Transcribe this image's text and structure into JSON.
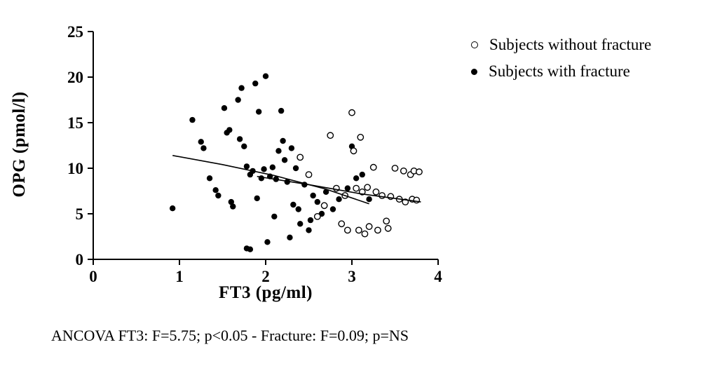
{
  "caption": "ANCOVA FT3: F=5.75; p&lt;0.05 - Fracture: F=0.09; p=NS",
  "caption_text": "ANCOVA FT3: F=5.75; p<0.05 - Fracture: F=0.09; p=NS",
  "chart_data": {
    "type": "scatter",
    "title": "",
    "xlabel": "FT3 (pg/ml)",
    "ylabel": "OPG (pmol/l)",
    "xlim": [
      0,
      4
    ],
    "ylim": [
      0,
      25
    ],
    "x_ticks": [
      0,
      1,
      2,
      3,
      4
    ],
    "y_ticks": [
      0,
      5,
      10,
      15,
      20,
      25
    ],
    "grid": false,
    "legend_position": "top-right",
    "marker_color": "#000000",
    "series": [
      {
        "name": "Subjects without fracture",
        "marker": "open-circle",
        "points": [
          [
            2.4,
            11.2
          ],
          [
            2.5,
            9.3
          ],
          [
            2.6,
            4.7
          ],
          [
            2.68,
            5.9
          ],
          [
            2.75,
            13.6
          ],
          [
            2.82,
            7.8
          ],
          [
            2.88,
            3.9
          ],
          [
            2.92,
            7.0
          ],
          [
            2.95,
            3.2
          ],
          [
            3.0,
            16.1
          ],
          [
            3.02,
            11.9
          ],
          [
            3.05,
            7.8
          ],
          [
            3.08,
            3.2
          ],
          [
            3.1,
            13.4
          ],
          [
            3.12,
            7.4
          ],
          [
            3.15,
            2.8
          ],
          [
            3.18,
            7.9
          ],
          [
            3.2,
            3.6
          ],
          [
            3.25,
            10.1
          ],
          [
            3.28,
            7.4
          ],
          [
            3.3,
            3.2
          ],
          [
            3.35,
            7.0
          ],
          [
            3.4,
            4.2
          ],
          [
            3.42,
            3.4
          ],
          [
            3.45,
            6.9
          ],
          [
            3.5,
            10.0
          ],
          [
            3.55,
            6.6
          ],
          [
            3.6,
            9.7
          ],
          [
            3.62,
            6.3
          ],
          [
            3.68,
            9.3
          ],
          [
            3.7,
            6.6
          ],
          [
            3.72,
            9.7
          ],
          [
            3.75,
            6.5
          ],
          [
            3.78,
            9.6
          ]
        ]
      },
      {
        "name": "Subjects with fracture",
        "marker": "filled-circle",
        "points": [
          [
            0.92,
            5.6
          ],
          [
            1.15,
            15.3
          ],
          [
            1.25,
            12.9
          ],
          [
            1.28,
            12.2
          ],
          [
            1.35,
            8.9
          ],
          [
            1.42,
            7.6
          ],
          [
            1.45,
            7.0
          ],
          [
            1.52,
            16.6
          ],
          [
            1.55,
            13.9
          ],
          [
            1.58,
            14.2
          ],
          [
            1.6,
            6.3
          ],
          [
            1.62,
            5.8
          ],
          [
            1.68,
            17.5
          ],
          [
            1.7,
            13.2
          ],
          [
            1.72,
            18.8
          ],
          [
            1.75,
            12.4
          ],
          [
            1.78,
            10.2
          ],
          [
            1.78,
            1.2
          ],
          [
            1.82,
            1.1
          ],
          [
            1.82,
            9.3
          ],
          [
            1.85,
            9.7
          ],
          [
            1.88,
            19.3
          ],
          [
            1.9,
            6.7
          ],
          [
            1.92,
            16.2
          ],
          [
            1.95,
            8.9
          ],
          [
            1.98,
            9.9
          ],
          [
            2.0,
            20.1
          ],
          [
            2.02,
            1.9
          ],
          [
            2.05,
            9.1
          ],
          [
            2.08,
            10.1
          ],
          [
            2.1,
            4.7
          ],
          [
            2.12,
            8.8
          ],
          [
            2.15,
            11.9
          ],
          [
            2.18,
            16.3
          ],
          [
            2.2,
            13.0
          ],
          [
            2.22,
            10.9
          ],
          [
            2.25,
            8.5
          ],
          [
            2.28,
            2.4
          ],
          [
            2.3,
            12.2
          ],
          [
            2.32,
            6.0
          ],
          [
            2.35,
            10.0
          ],
          [
            2.38,
            5.5
          ],
          [
            2.4,
            3.9
          ],
          [
            2.45,
            8.2
          ],
          [
            2.5,
            3.2
          ],
          [
            2.52,
            4.3
          ],
          [
            2.55,
            7.0
          ],
          [
            2.6,
            6.3
          ],
          [
            2.65,
            5.0
          ],
          [
            2.7,
            7.4
          ],
          [
            2.78,
            5.5
          ],
          [
            2.85,
            6.6
          ],
          [
            2.95,
            7.8
          ],
          [
            3.0,
            12.4
          ],
          [
            3.05,
            8.9
          ],
          [
            3.12,
            9.3
          ],
          [
            3.2,
            6.6
          ]
        ]
      }
    ],
    "trend_lines": [
      {
        "name": "trend-with-fracture",
        "points": [
          [
            0.92,
            11.4
          ],
          [
            1.5,
            10.4
          ],
          [
            2.1,
            9.2
          ],
          [
            2.7,
            7.7
          ],
          [
            3.2,
            6.1
          ]
        ]
      },
      {
        "name": "trend-without-fracture",
        "points": [
          [
            1.9,
            9.1
          ],
          [
            2.5,
            8.2
          ],
          [
            3.1,
            7.2
          ],
          [
            3.8,
            6.3
          ]
        ]
      }
    ]
  }
}
